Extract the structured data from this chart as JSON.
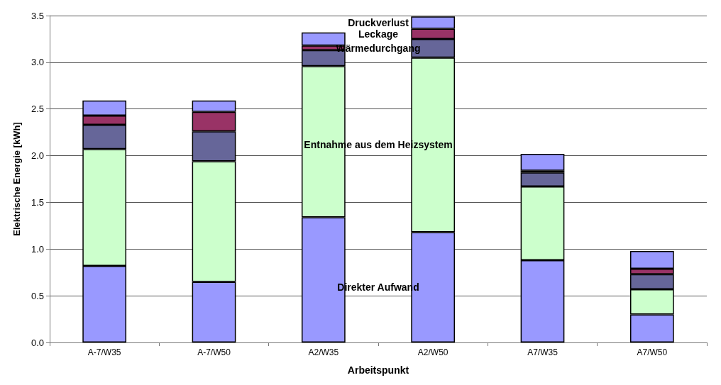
{
  "chart_data": {
    "type": "bar",
    "stacked": true,
    "xlabel": "Arbeitspunkt",
    "ylabel": "Elektrische Energie [kWh]",
    "categories": [
      "A-7/W35",
      "A-7/W50",
      "A2/W35",
      "A2/W50",
      "A7/W35",
      "A7/W50"
    ],
    "series": [
      {
        "name": "Direkter Aufwand",
        "color": "#9999ff",
        "values": [
          0.82,
          0.65,
          1.34,
          1.18,
          0.88,
          0.3
        ]
      },
      {
        "name": "Entnahme aus dem Heizsystem",
        "color": "#ccffcc",
        "values": [
          1.25,
          1.29,
          1.62,
          1.87,
          0.79,
          0.27
        ]
      },
      {
        "name": "Wärmedurchgang",
        "color": "#666699",
        "values": [
          0.26,
          0.32,
          0.17,
          0.2,
          0.15,
          0.16
        ]
      },
      {
        "name": "Leckage",
        "color": "#993366",
        "values": [
          0.1,
          0.21,
          0.05,
          0.11,
          0.02,
          0.06
        ]
      },
      {
        "name": "Druckverlust",
        "color": "#9999ff",
        "values": [
          0.16,
          0.12,
          0.14,
          0.13,
          0.18,
          0.19
        ]
      }
    ],
    "ylim": [
      0,
      3.5
    ],
    "yticks": [
      {
        "value": 0,
        "label": "0.0"
      },
      {
        "value": 0.5,
        "label": "0.5"
      },
      {
        "value": 1,
        "label": "1.0"
      },
      {
        "value": 1.5,
        "label": "1.5"
      },
      {
        "value": 2,
        "label": "2.0"
      },
      {
        "value": 2.5,
        "label": "2.5"
      },
      {
        "value": 3,
        "label": "3.0"
      },
      {
        "value": 3.5,
        "label": "3.5"
      }
    ],
    "grid": "y",
    "legend": false
  }
}
